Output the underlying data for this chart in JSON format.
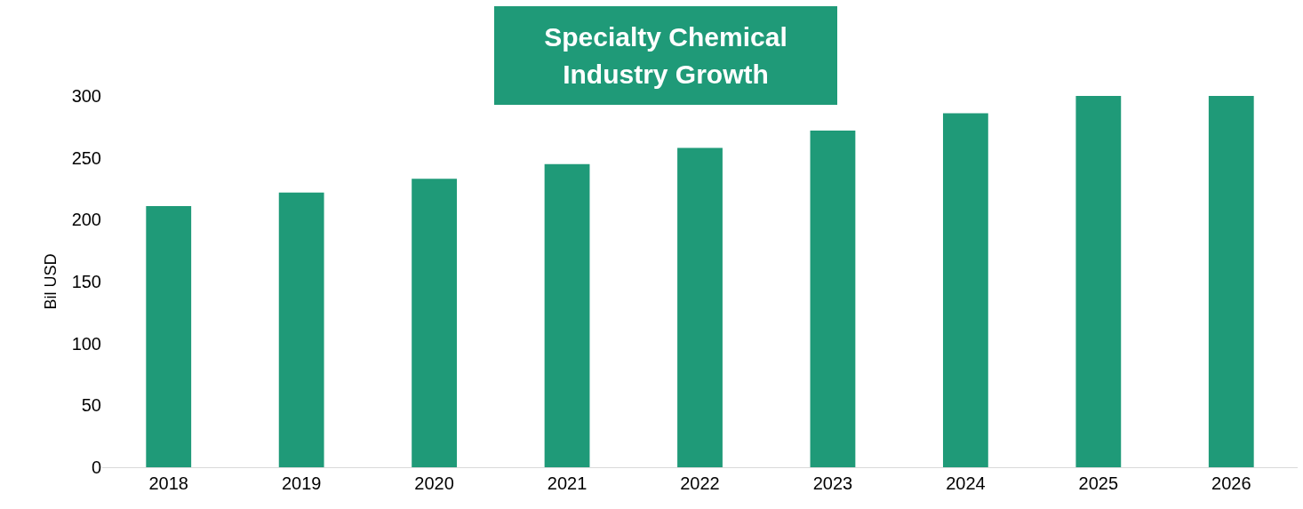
{
  "chart_data": {
    "type": "bar",
    "title": "Specialty Chemical Industry Growth",
    "ylabel": "Bil USD",
    "categories": [
      "2018",
      "2019",
      "2020",
      "2021",
      "2022",
      "2023",
      "2024",
      "2025",
      "2026"
    ],
    "values": [
      211,
      222,
      233,
      245,
      258,
      272,
      286,
      300,
      300
    ],
    "color": "#1f9a78",
    "ylim": [
      0,
      300
    ],
    "yticks": [
      0,
      50,
      100,
      150,
      200,
      250,
      300
    ],
    "grid": false,
    "legend": false
  }
}
